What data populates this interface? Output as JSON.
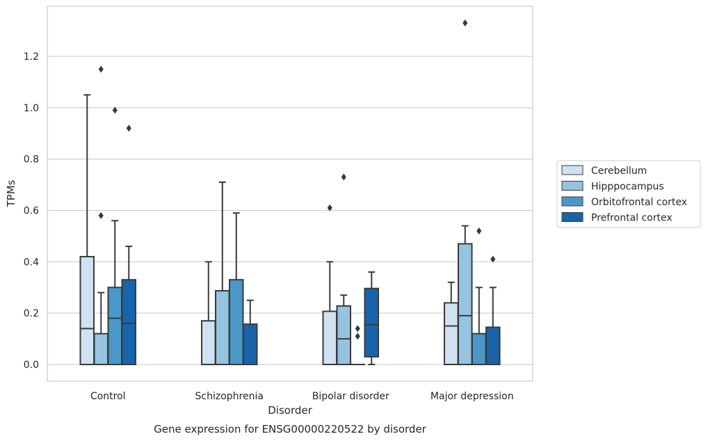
{
  "chart_data": {
    "type": "box",
    "title": "Gene expression for ENSG00000220522 by disorder",
    "xlabel": "Disorder",
    "ylabel": "TPMs",
    "ylim": [
      -0.065,
      1.395
    ],
    "yticks": [
      0.0,
      0.2,
      0.4,
      0.6,
      0.8,
      1.0,
      1.2
    ],
    "ytick_labels": [
      "0.0",
      "0.2",
      "0.4",
      "0.6",
      "0.8",
      "1.0",
      "1.2"
    ],
    "grid": true,
    "legend_position": "right",
    "categories": [
      "Control",
      "Schizophrenia",
      "Bipolar disorder",
      "Major depression"
    ],
    "series": [
      {
        "name": "Cerebellum",
        "color": "#d0e1f2",
        "boxes": [
          {
            "whisker_low": 0.0,
            "q1": 0.0,
            "median": 0.14,
            "q3": 0.42,
            "whisker_high": 1.05,
            "outliers": []
          },
          {
            "whisker_low": 0.0,
            "q1": 0.0,
            "median": 0.0,
            "q3": 0.17,
            "whisker_high": 0.4,
            "outliers": []
          },
          {
            "whisker_low": 0.0,
            "q1": 0.0,
            "median": 0.0,
            "q3": 0.207,
            "whisker_high": 0.4,
            "outliers": [
              0.61
            ]
          },
          {
            "whisker_low": 0.0,
            "q1": 0.0,
            "median": 0.15,
            "q3": 0.24,
            "whisker_high": 0.32,
            "outliers": []
          }
        ]
      },
      {
        "name": "Hipppocampus",
        "color": "#94c4df",
        "boxes": [
          {
            "whisker_low": 0.0,
            "q1": 0.0,
            "median": 0.0,
            "q3": 0.12,
            "whisker_high": 0.28,
            "outliers": [
              0.58,
              1.15
            ]
          },
          {
            "whisker_low": 0.0,
            "q1": 0.0,
            "median": 0.0,
            "q3": 0.287,
            "whisker_high": 0.71,
            "outliers": []
          },
          {
            "whisker_low": 0.0,
            "q1": 0.0,
            "median": 0.1,
            "q3": 0.228,
            "whisker_high": 0.27,
            "outliers": [
              0.73
            ]
          },
          {
            "whisker_low": 0.0,
            "q1": 0.0,
            "median": 0.19,
            "q3": 0.47,
            "whisker_high": 0.54,
            "outliers": [
              1.33
            ]
          }
        ]
      },
      {
        "name": "Orbitofrontal cortex",
        "color": "#4a98c9",
        "boxes": [
          {
            "whisker_low": 0.0,
            "q1": 0.0,
            "median": 0.18,
            "q3": 0.3,
            "whisker_high": 0.56,
            "outliers": [
              0.99
            ]
          },
          {
            "whisker_low": 0.0,
            "q1": 0.0,
            "median": 0.0,
            "q3": 0.33,
            "whisker_high": 0.59,
            "outliers": []
          },
          {
            "whisker_low": 0.0,
            "q1": 0.0,
            "median": 0.0,
            "q3": 0.0,
            "whisker_high": 0.0,
            "outliers": [
              0.11,
              0.14
            ]
          },
          {
            "whisker_low": 0.0,
            "q1": 0.0,
            "median": 0.0,
            "q3": 0.12,
            "whisker_high": 0.3,
            "outliers": [
              0.52
            ]
          }
        ]
      },
      {
        "name": "Prefrontal cortex",
        "color": "#1764ab",
        "boxes": [
          {
            "whisker_low": 0.0,
            "q1": 0.0,
            "median": 0.16,
            "q3": 0.33,
            "whisker_high": 0.46,
            "outliers": [
              0.92
            ]
          },
          {
            "whisker_low": 0.0,
            "q1": 0.0,
            "median": 0.0,
            "q3": 0.157,
            "whisker_high": 0.25,
            "outliers": []
          },
          {
            "whisker_low": 0.0,
            "q1": 0.03,
            "median": 0.155,
            "q3": 0.296,
            "whisker_high": 0.36,
            "outliers": []
          },
          {
            "whisker_low": 0.0,
            "q1": 0.0,
            "median": 0.0,
            "q3": 0.145,
            "whisker_high": 0.3,
            "outliers": [
              0.41
            ]
          }
        ]
      }
    ]
  }
}
